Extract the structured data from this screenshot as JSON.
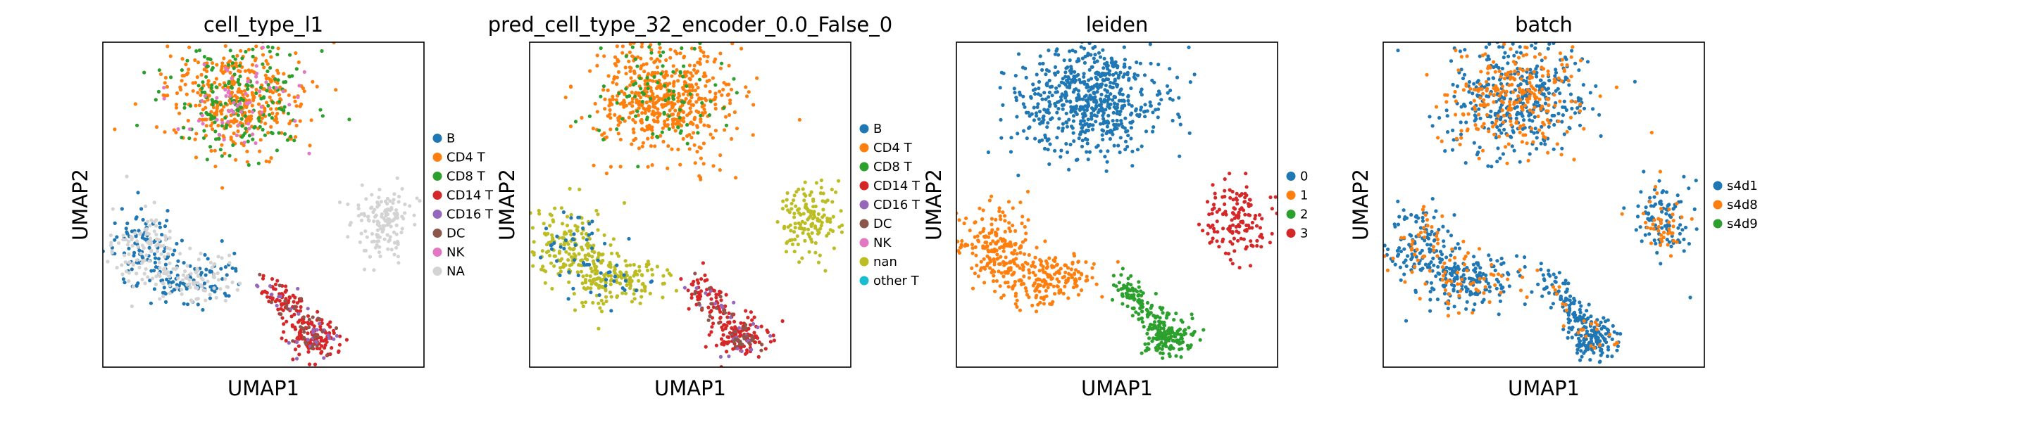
{
  "figure": {
    "xlabel": "UMAP1",
    "ylabel": "UMAP2"
  },
  "chart_data": [
    {
      "type": "scatter",
      "title": "cell_type_l1",
      "xlabel": "UMAP1",
      "ylabel": "UMAP2",
      "legend_position": "right",
      "categories": [
        "B",
        "CD4 T",
        "CD8 T",
        "CD14 T",
        "CD16 T",
        "DC",
        "NK",
        "NA"
      ],
      "colors": [
        "#1f77b4",
        "#ff7f0e",
        "#2ca02c",
        "#d62728",
        "#9467bd",
        "#8c564b",
        "#e377c2",
        "#d3d3d3"
      ],
      "clusters": [
        {
          "category": "CD4 T",
          "region": "top",
          "fraction": 0.6
        },
        {
          "category": "CD8 T",
          "region": "top",
          "fraction": 0.3
        },
        {
          "category": "NK",
          "region": "top",
          "fraction": 0.1
        },
        {
          "category": "B",
          "region": "left",
          "fraction": 0.5
        },
        {
          "category": "NA",
          "region": "left",
          "fraction": 0.5
        },
        {
          "category": "NA",
          "region": "right",
          "fraction": 1.0
        },
        {
          "category": "CD14 T",
          "region": "bottom",
          "fraction": 0.75
        },
        {
          "category": "CD16 T",
          "region": "bottom",
          "fraction": 0.12
        },
        {
          "category": "DC",
          "region": "bottom",
          "fraction": 0.13
        }
      ]
    },
    {
      "type": "scatter",
      "title": "pred_cell_type_32_encoder_0.0_False_0",
      "xlabel": "UMAP1",
      "ylabel": "UMAP2",
      "legend_position": "right",
      "categories": [
        "B",
        "CD4 T",
        "CD8 T",
        "CD14 T",
        "CD16 T",
        "DC",
        "NK",
        "nan",
        "other T"
      ],
      "colors": [
        "#1f77b4",
        "#ff7f0e",
        "#2ca02c",
        "#d62728",
        "#9467bd",
        "#8c564b",
        "#e377c2",
        "#bcbd22",
        "#17becf"
      ],
      "clusters": [
        {
          "category": "CD4 T",
          "region": "top",
          "fraction": 0.85
        },
        {
          "category": "CD8 T",
          "region": "top",
          "fraction": 0.15
        },
        {
          "category": "nan",
          "region": "left",
          "fraction": 0.85
        },
        {
          "category": "B",
          "region": "left",
          "fraction": 0.15
        },
        {
          "category": "nan",
          "region": "right",
          "fraction": 1.0
        },
        {
          "category": "CD14 T",
          "region": "bottom",
          "fraction": 0.75
        },
        {
          "category": "CD16 T",
          "region": "bottom",
          "fraction": 0.1
        },
        {
          "category": "DC",
          "region": "bottom",
          "fraction": 0.15
        }
      ]
    },
    {
      "type": "scatter",
      "title": "leiden",
      "xlabel": "UMAP1",
      "ylabel": "UMAP2",
      "legend_position": "right",
      "categories": [
        "0",
        "1",
        "2",
        "3"
      ],
      "colors": [
        "#1f77b4",
        "#ff7f0e",
        "#2ca02c",
        "#d62728"
      ],
      "clusters": [
        {
          "category": "0",
          "region": "top",
          "fraction": 1.0
        },
        {
          "category": "1",
          "region": "left",
          "fraction": 1.0
        },
        {
          "category": "3",
          "region": "right",
          "fraction": 1.0
        },
        {
          "category": "2",
          "region": "bottom",
          "fraction": 1.0
        }
      ]
    },
    {
      "type": "scatter",
      "title": "batch",
      "xlabel": "UMAP1",
      "ylabel": "UMAP2",
      "legend_position": "right",
      "categories": [
        "s4d1",
        "s4d8",
        "s4d9"
      ],
      "colors": [
        "#1f77b4",
        "#ff7f0e",
        "#2ca02c"
      ],
      "clusters": [
        {
          "category": "s4d1",
          "region": "top",
          "fraction": 0.6
        },
        {
          "category": "s4d8",
          "region": "top",
          "fraction": 0.4
        },
        {
          "category": "s4d1",
          "region": "left",
          "fraction": 0.75
        },
        {
          "category": "s4d8",
          "region": "left",
          "fraction": 0.25
        },
        {
          "category": "s4d1",
          "region": "right",
          "fraction": 0.7
        },
        {
          "category": "s4d8",
          "region": "right",
          "fraction": 0.3
        },
        {
          "category": "s4d1",
          "region": "bottom",
          "fraction": 0.9
        },
        {
          "category": "s4d8",
          "region": "bottom",
          "fraction": 0.1
        }
      ]
    }
  ]
}
